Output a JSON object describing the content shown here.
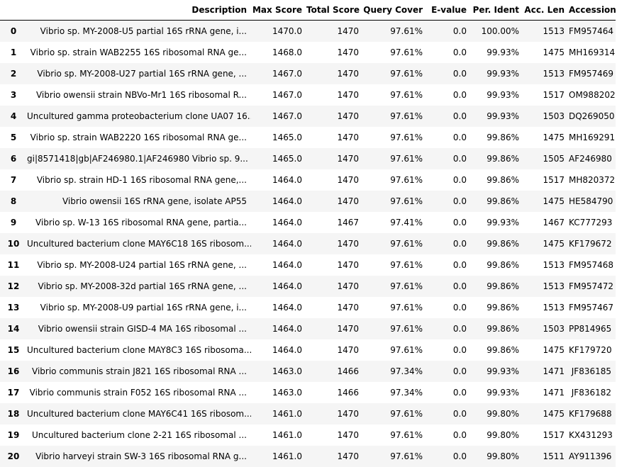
{
  "table": {
    "columns": [
      "",
      "Description",
      "Max Score",
      "Total Score",
      "Query Cover",
      "E-value",
      "Per. Ident",
      "Acc. Len",
      "Accession"
    ],
    "rows": [
      [
        "0",
        "Vibrio sp. MY-2008-U5 partial 16S rRNA gene, i...",
        "1470.0",
        "1470",
        "97.61%",
        "0.0",
        "100.00%",
        "1513",
        "FM957464"
      ],
      [
        "1",
        "Vibrio sp. strain WAB2255 16S ribosomal RNA ge...",
        "1468.0",
        "1470",
        "97.61%",
        "0.0",
        "99.93%",
        "1475",
        "MH169314"
      ],
      [
        "2",
        "Vibrio sp. MY-2008-U27 partial 16S rRNA gene, ...",
        "1467.0",
        "1470",
        "97.61%",
        "0.0",
        "99.93%",
        "1513",
        "FM957469"
      ],
      [
        "3",
        "Vibrio owensii strain NBVo-Mr1 16S ribosomal R...",
        "1467.0",
        "1470",
        "97.61%",
        "0.0",
        "99.93%",
        "1517",
        "OM988202"
      ],
      [
        "4",
        "Uncultured gamma proteobacterium clone UA07 16...",
        "1467.0",
        "1470",
        "97.61%",
        "0.0",
        "99.93%",
        "1503",
        "DQ269050"
      ],
      [
        "5",
        "Vibrio sp. strain WAB2220 16S ribosomal RNA ge...",
        "1465.0",
        "1470",
        "97.61%",
        "0.0",
        "99.86%",
        "1475",
        "MH169291"
      ],
      [
        "6",
        "gi|8571418|gb|AF246980.1|AF246980 Vibrio sp. 9...",
        "1465.0",
        "1470",
        "97.61%",
        "0.0",
        "99.86%",
        "1505",
        "AF246980"
      ],
      [
        "7",
        "Vibrio sp. strain HD-1 16S ribosomal RNA gene,...",
        "1464.0",
        "1470",
        "97.61%",
        "0.0",
        "99.86%",
        "1517",
        "MH820372"
      ],
      [
        "8",
        "Vibrio owensii 16S rRNA gene, isolate AP55",
        "1464.0",
        "1470",
        "97.61%",
        "0.0",
        "99.86%",
        "1475",
        "HE584790"
      ],
      [
        "9",
        "Vibrio sp. W-13 16S ribosomal RNA gene, partia...",
        "1464.0",
        "1467",
        "97.41%",
        "0.0",
        "99.93%",
        "1467",
        "KC777293"
      ],
      [
        "10",
        "Uncultured bacterium clone MAY6C18 16S ribosom...",
        "1464.0",
        "1470",
        "97.61%",
        "0.0",
        "99.86%",
        "1475",
        "KF179672"
      ],
      [
        "11",
        "Vibrio sp. MY-2008-U24 partial 16S rRNA gene, ...",
        "1464.0",
        "1470",
        "97.61%",
        "0.0",
        "99.86%",
        "1513",
        "FM957468"
      ],
      [
        "12",
        "Vibrio sp. MY-2008-32d partial 16S rRNA gene, ...",
        "1464.0",
        "1470",
        "97.61%",
        "0.0",
        "99.86%",
        "1513",
        "FM957472"
      ],
      [
        "13",
        "Vibrio sp. MY-2008-U9 partial 16S rRNA gene, i...",
        "1464.0",
        "1470",
        "97.61%",
        "0.0",
        "99.86%",
        "1513",
        "FM957467"
      ],
      [
        "14",
        "Vibrio owensii strain GISD-4 MA 16S ribosomal ...",
        "1464.0",
        "1470",
        "97.61%",
        "0.0",
        "99.86%",
        "1503",
        "PP814965"
      ],
      [
        "15",
        "Uncultured bacterium clone MAY8C3 16S ribosoma...",
        "1464.0",
        "1470",
        "97.61%",
        "0.0",
        "99.86%",
        "1475",
        "KF179720"
      ],
      [
        "16",
        "Vibrio communis strain J821 16S ribosomal RNA ...",
        "1463.0",
        "1466",
        "97.34%",
        "0.0",
        "99.93%",
        "1471",
        "JF836185"
      ],
      [
        "17",
        "Vibrio communis strain F052 16S ribosomal RNA ...",
        "1463.0",
        "1466",
        "97.34%",
        "0.0",
        "99.93%",
        "1471",
        "JF836182"
      ],
      [
        "18",
        "Uncultured bacterium clone MAY6C41 16S ribosom...",
        "1461.0",
        "1470",
        "97.61%",
        "0.0",
        "99.80%",
        "1475",
        "KF179688"
      ],
      [
        "19",
        "Uncultured bacterium clone 2-21 16S ribosomal ...",
        "1461.0",
        "1470",
        "97.61%",
        "0.0",
        "99.80%",
        "1517",
        "KX431293"
      ],
      [
        "20",
        "Vibrio harveyi strain SW-3 16S ribosomal RNA g...",
        "1461.0",
        "1470",
        "97.61%",
        "0.0",
        "99.80%",
        "1511",
        "AY911396"
      ]
    ]
  }
}
